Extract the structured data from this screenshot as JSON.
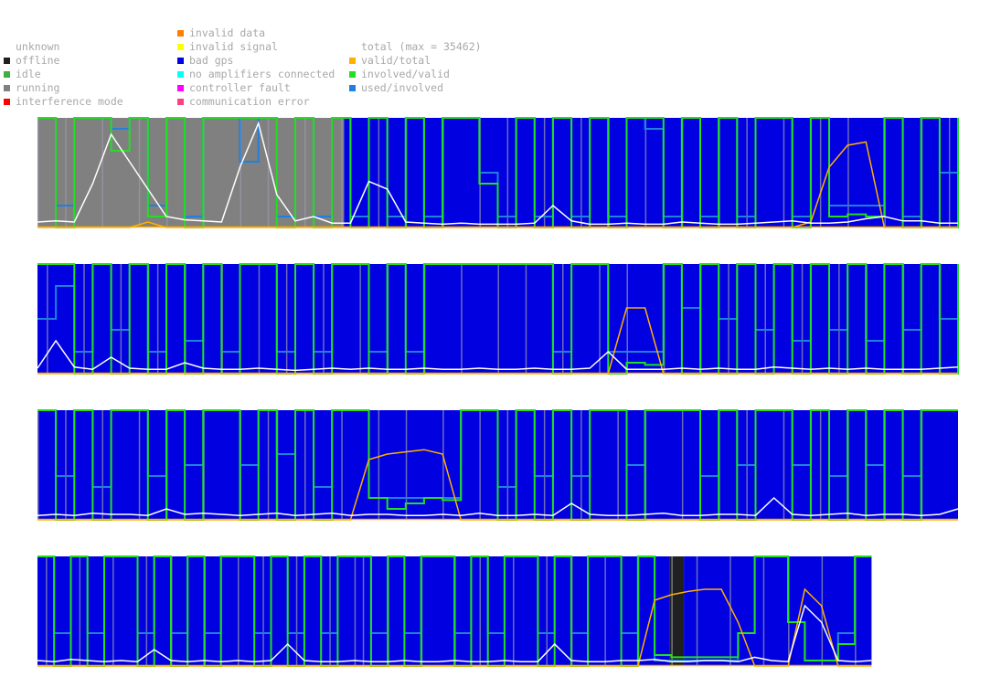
{
  "legend": {
    "columns": [
      {
        "items": [
          {
            "label": "unknown",
            "color": "#ffffff"
          },
          {
            "label": "offline",
            "color": "#202020"
          },
          {
            "label": "idle",
            "color": "#3cb043"
          },
          {
            "label": "running",
            "color": "#808080"
          },
          {
            "label": "interference mode",
            "color": "#ff0000"
          }
        ]
      },
      {
        "items": [
          {
            "label": "invalid data",
            "color": "#ff7f00"
          },
          {
            "label": "invalid signal",
            "color": "#ffff00"
          },
          {
            "label": "bad gps",
            "color": "#0000e0"
          },
          {
            "label": "no amplifiers connected",
            "color": "#00ffff"
          },
          {
            "label": "controller fault",
            "color": "#ff00ff"
          },
          {
            "label": "communication error",
            "color": "#ff4080"
          }
        ]
      },
      {
        "items": [
          {
            "label": "total (max = 35462)",
            "color": ""
          },
          {
            "label": "valid/total",
            "color": "#ffb000"
          },
          {
            "label": "involved/valid",
            "color": "#20e020"
          },
          {
            "label": "used/involved",
            "color": "#2080e0"
          }
        ]
      }
    ]
  },
  "chart_data": {
    "type": "area",
    "description_free": true,
    "total_max": 35462,
    "state_colors": {
      "running": "#808080",
      "bad_gps": "#0000e0",
      "offline": "#202020"
    },
    "series_colors": {
      "total": "#ffffff",
      "valid_total": "#ffb000",
      "involved_valid": "#20e020",
      "used_involved": "#2080e0"
    },
    "strips": [
      {
        "length": 1.0,
        "states": [
          {
            "state": "running",
            "from": 0.0,
            "to": 0.333
          },
          {
            "state": "bad_gps",
            "from": 0.333,
            "to": 1.0
          }
        ],
        "total": [
          0.05,
          0.06,
          0.05,
          0.4,
          0.85,
          0.6,
          0.35,
          0.1,
          0.07,
          0.06,
          0.05,
          0.55,
          0.95,
          0.3,
          0.06,
          0.1,
          0.04,
          0.04,
          0.42,
          0.35,
          0.05,
          0.04,
          0.03,
          0.04,
          0.03,
          0.03,
          0.03,
          0.04,
          0.2,
          0.06,
          0.03,
          0.03,
          0.04,
          0.03,
          0.03,
          0.05,
          0.04,
          0.03,
          0.03,
          0.04,
          0.05,
          0.06,
          0.04,
          0.04,
          0.05,
          0.08,
          0.1,
          0.06,
          0.06,
          0.04,
          0.04
        ],
        "valid_total": [
          0.0,
          0.0,
          0.0,
          0.0,
          0.0,
          0.0,
          0.05,
          0.0,
          0.0,
          0.0,
          0.0,
          0.0,
          0.0,
          0.0,
          0.0,
          0.0,
          0.0,
          0.0,
          0.0,
          0.0,
          0.0,
          0.0,
          0.0,
          0.0,
          0.0,
          0.0,
          0.0,
          0.0,
          0.0,
          0.0,
          0.0,
          0.0,
          0.0,
          0.0,
          0.0,
          0.0,
          0.0,
          0.0,
          0.0,
          0.0,
          0.0,
          0.0,
          0.05,
          0.55,
          0.75,
          0.78,
          0.0,
          0.0,
          0.0,
          0.0,
          0.0
        ],
        "involved_valid": [
          1,
          0,
          1,
          1,
          0.7,
          1,
          0.1,
          1,
          0,
          1,
          1,
          1,
          1,
          0,
          1,
          0,
          1,
          0,
          1,
          0,
          1,
          0,
          1,
          1,
          0.4,
          0,
          1,
          0,
          1,
          0,
          1,
          0,
          1,
          1,
          0,
          1,
          0,
          1,
          0,
          1,
          1,
          0,
          1,
          0.1,
          0.12,
          0.1,
          1,
          0,
          1,
          0,
          1
        ],
        "used_involved": [
          1,
          0.2,
          1,
          1,
          0.9,
          1,
          0.2,
          1,
          0.1,
          1,
          1,
          0.6,
          1,
          0.1,
          1,
          0.1,
          1,
          0.1,
          1,
          0.1,
          1,
          0.1,
          1,
          1,
          0.5,
          0.1,
          1,
          0.1,
          1,
          0.1,
          1,
          0.1,
          1,
          0.9,
          0.1,
          1,
          0.1,
          1,
          0.1,
          1,
          1,
          0.1,
          1,
          0.2,
          0.2,
          0.2,
          1,
          0.1,
          1,
          0.5,
          1
        ]
      },
      {
        "length": 1.0,
        "states": [
          {
            "state": "bad_gps",
            "from": 0.0,
            "to": 1.0
          }
        ],
        "total": [
          0.05,
          0.3,
          0.06,
          0.04,
          0.15,
          0.05,
          0.04,
          0.04,
          0.1,
          0.05,
          0.04,
          0.04,
          0.05,
          0.04,
          0.03,
          0.04,
          0.05,
          0.04,
          0.05,
          0.04,
          0.04,
          0.05,
          0.04,
          0.04,
          0.05,
          0.04,
          0.04,
          0.05,
          0.04,
          0.04,
          0.05,
          0.2,
          0.04,
          0.04,
          0.04,
          0.05,
          0.04,
          0.05,
          0.04,
          0.04,
          0.06,
          0.05,
          0.04,
          0.05,
          0.04,
          0.05,
          0.04,
          0.04,
          0.04,
          0.05,
          0.06
        ],
        "valid_total": [
          0,
          0,
          0,
          0,
          0,
          0,
          0,
          0,
          0,
          0,
          0,
          0,
          0,
          0,
          0,
          0,
          0,
          0,
          0,
          0,
          0,
          0,
          0,
          0,
          0,
          0,
          0,
          0,
          0,
          0,
          0,
          0,
          0.6,
          0.6,
          0.0,
          0,
          0,
          0,
          0,
          0,
          0,
          0,
          0,
          0,
          0,
          0,
          0,
          0,
          0,
          0,
          0
        ],
        "involved_valid": [
          1,
          1,
          0,
          1,
          0,
          1,
          0,
          1,
          0,
          1,
          0,
          1,
          1,
          0,
          1,
          0,
          1,
          1,
          0,
          1,
          0,
          1,
          1,
          1,
          1,
          1,
          1,
          1,
          0,
          1,
          1,
          0,
          0.1,
          0.08,
          1,
          0,
          1,
          0,
          1,
          0,
          1,
          0,
          1,
          0,
          1,
          0,
          1,
          0,
          1,
          0,
          1
        ],
        "used_involved": [
          0.5,
          0.8,
          0.2,
          1,
          0.4,
          1,
          0.2,
          1,
          0.3,
          1,
          0.2,
          1,
          1,
          0.2,
          1,
          0.2,
          1,
          1,
          0.2,
          1,
          0.2,
          1,
          1,
          1,
          1,
          1,
          1,
          1,
          0.2,
          1,
          1,
          0.2,
          0.2,
          0.2,
          1,
          0.6,
          1,
          0.5,
          1,
          0.4,
          1,
          0.3,
          1,
          0.4,
          1,
          0.3,
          1,
          0.4,
          1,
          0.5,
          1
        ]
      },
      {
        "length": 1.0,
        "states": [
          {
            "state": "bad_gps",
            "from": 0.0,
            "to": 1.0
          }
        ],
        "total": [
          0.04,
          0.05,
          0.04,
          0.06,
          0.05,
          0.05,
          0.04,
          0.1,
          0.05,
          0.06,
          0.05,
          0.04,
          0.05,
          0.06,
          0.04,
          0.05,
          0.06,
          0.04,
          0.05,
          0.05,
          0.04,
          0.04,
          0.05,
          0.04,
          0.06,
          0.04,
          0.04,
          0.05,
          0.04,
          0.15,
          0.05,
          0.04,
          0.04,
          0.05,
          0.06,
          0.04,
          0.04,
          0.05,
          0.05,
          0.04,
          0.2,
          0.05,
          0.04,
          0.05,
          0.06,
          0.04,
          0.05,
          0.05,
          0.04,
          0.05,
          0.1
        ],
        "valid_total": [
          0,
          0,
          0,
          0,
          0,
          0,
          0,
          0,
          0,
          0,
          0,
          0,
          0,
          0,
          0,
          0,
          0,
          0,
          0.55,
          0.6,
          0.62,
          0.64,
          0.6,
          0.0,
          0,
          0,
          0,
          0,
          0,
          0,
          0,
          0,
          0,
          0,
          0,
          0,
          0,
          0,
          0,
          0,
          0,
          0,
          0,
          0,
          0,
          0,
          0,
          0,
          0,
          0,
          0
        ],
        "involved_valid": [
          1,
          0,
          1,
          0,
          1,
          1,
          0,
          1,
          0,
          1,
          1,
          0,
          1,
          0,
          1,
          0,
          1,
          1,
          0.2,
          0.1,
          0.15,
          0.2,
          0.18,
          1,
          1,
          0,
          1,
          0,
          1,
          0,
          1,
          1,
          0,
          1,
          1,
          1,
          0,
          1,
          0,
          1,
          1,
          0,
          1,
          0,
          1,
          0,
          1,
          0,
          1,
          1,
          1
        ],
        "used_involved": [
          1,
          0.4,
          1,
          0.3,
          1,
          1,
          0.4,
          1,
          0.5,
          1,
          1,
          0.5,
          1,
          0.6,
          1,
          0.3,
          1,
          1,
          0.2,
          0.2,
          0.2,
          0.2,
          0.2,
          1,
          1,
          0.3,
          1,
          0.4,
          1,
          0.4,
          1,
          1,
          0.5,
          1,
          1,
          1,
          0.4,
          1,
          0.5,
          1,
          1,
          0.5,
          1,
          0.4,
          1,
          0.5,
          1,
          0.4,
          1,
          1,
          1
        ]
      },
      {
        "length": 0.906,
        "states": [
          {
            "state": "bad_gps",
            "from": 0.0,
            "to": 0.758
          },
          {
            "state": "offline",
            "from": 0.758,
            "to": 0.775
          },
          {
            "state": "bad_gps",
            "from": 0.775,
            "to": 1.0
          }
        ],
        "total": [
          0.05,
          0.04,
          0.06,
          0.05,
          0.04,
          0.05,
          0.04,
          0.15,
          0.05,
          0.04,
          0.05,
          0.04,
          0.05,
          0.04,
          0.05,
          0.2,
          0.05,
          0.04,
          0.04,
          0.05,
          0.04,
          0.04,
          0.05,
          0.04,
          0.04,
          0.05,
          0.04,
          0.04,
          0.05,
          0.04,
          0.04,
          0.2,
          0.05,
          0.04,
          0.04,
          0.05,
          0.05,
          0.06,
          0.04,
          0.04,
          0.05,
          0.05,
          0.04,
          0.08,
          0.05,
          0.04,
          0.55,
          0.4,
          0.05,
          0.04,
          0.05
        ],
        "valid_total": [
          0,
          0,
          0,
          0,
          0,
          0,
          0,
          0,
          0,
          0,
          0,
          0,
          0,
          0,
          0,
          0,
          0,
          0,
          0,
          0,
          0,
          0,
          0,
          0,
          0,
          0,
          0,
          0,
          0,
          0,
          0,
          0,
          0,
          0,
          0,
          0,
          0,
          0.6,
          0.65,
          0.68,
          0.7,
          0.7,
          0.4,
          0,
          0,
          0,
          0.7,
          0.55,
          0,
          0,
          0
        ],
        "involved_valid": [
          1,
          0,
          1,
          0,
          1,
          1,
          0,
          1,
          0,
          1,
          0,
          1,
          1,
          0,
          1,
          0,
          1,
          0,
          1,
          1,
          0,
          1,
          0,
          1,
          1,
          0,
          1,
          0,
          1,
          1,
          0,
          1,
          0,
          1,
          1,
          0,
          1,
          0.1,
          0.08,
          0.08,
          0.08,
          0.08,
          0.3,
          1,
          1,
          0.4,
          0.05,
          0.05,
          0.2,
          1,
          1
        ],
        "used_involved": [
          1,
          0.3,
          1,
          0.3,
          1,
          1,
          0.3,
          1,
          0.3,
          1,
          0.3,
          1,
          1,
          0.3,
          1,
          0.3,
          1,
          0.3,
          1,
          1,
          0.3,
          1,
          0.3,
          1,
          1,
          0.3,
          1,
          0.3,
          1,
          1,
          0.3,
          1,
          0.3,
          1,
          1,
          0.3,
          1,
          0.05,
          0.05,
          0.05,
          0.05,
          0.05,
          0.3,
          1,
          1,
          0.4,
          0.05,
          0.05,
          0.3,
          1,
          1
        ]
      }
    ]
  }
}
